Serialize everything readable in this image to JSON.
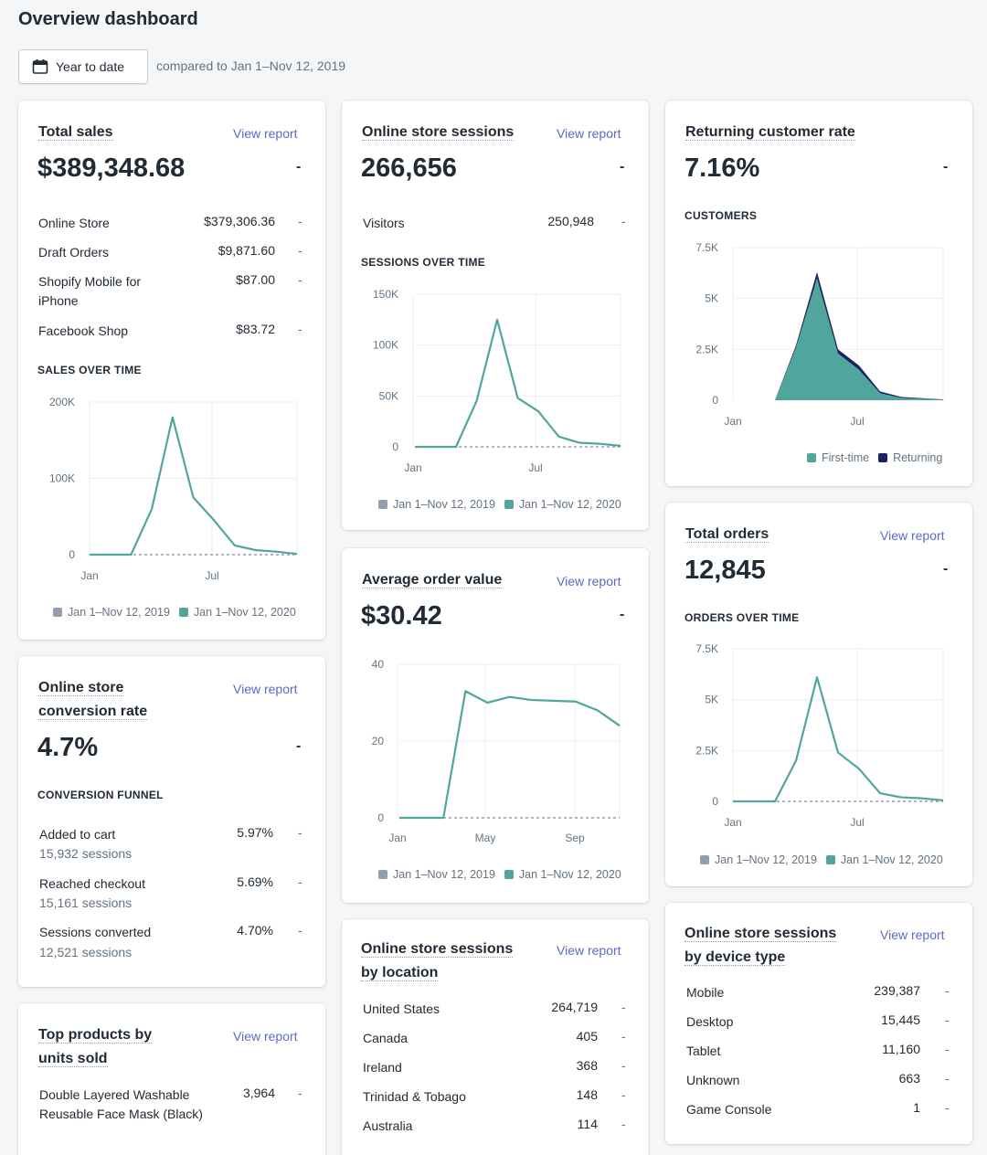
{
  "header": {
    "title": "Overview dashboard",
    "date_button": "Year to date",
    "compare_text": "compared to Jan 1–Nov 12, 2019"
  },
  "colors": {
    "current": "#50a69c",
    "previous": "#919eab",
    "returning": "#1c2260",
    "link": "#5c6ac4"
  },
  "legend": {
    "previous": "Jan 1–Nov 12, 2019",
    "current": "Jan 1–Nov 12, 2020"
  },
  "total_sales": {
    "title": "Total sales",
    "view": "View report",
    "value": "$389,348.68",
    "dash": "-",
    "rows": [
      {
        "label": "Online Store",
        "value": "$379,306.36",
        "dash": "-"
      },
      {
        "label": "Draft Orders",
        "value": "$9,871.60",
        "dash": "-"
      },
      {
        "label": "Shopify Mobile for iPhone",
        "value": "$87.00",
        "dash": "-"
      },
      {
        "label": "Facebook Shop",
        "value": "$83.72",
        "dash": "-"
      }
    ],
    "chart_title": "SALES OVER TIME"
  },
  "sessions": {
    "title": "Online store sessions",
    "view": "View report",
    "value": "266,656",
    "dash": "-",
    "visitors_label": "Visitors",
    "visitors_value": "250,948",
    "visitors_dash": "-",
    "chart_title": "SESSIONS OVER TIME"
  },
  "returning": {
    "title": "Returning customer rate",
    "value": "7.16%",
    "dash": "-",
    "chart_title": "CUSTOMERS",
    "legend_first": "First-time",
    "legend_returning": "Returning"
  },
  "conversion": {
    "title_line1": "Online store",
    "title_line2": "conversion rate",
    "view": "View report",
    "value": "4.7%",
    "dash": "-",
    "funnel_title": "CONVERSION FUNNEL",
    "rows": [
      {
        "label": "Added to cart",
        "sub": "15,932 sessions",
        "value": "5.97%",
        "dash": "-"
      },
      {
        "label": "Reached checkout",
        "sub": "15,161 sessions",
        "value": "5.69%",
        "dash": "-"
      },
      {
        "label": "Sessions converted",
        "sub": "12,521 sessions",
        "value": "4.70%",
        "dash": "-"
      }
    ]
  },
  "aov": {
    "title": "Average order value",
    "view": "View report",
    "value": "$30.42",
    "dash": "-"
  },
  "orders": {
    "title": "Total orders",
    "view": "View report",
    "value": "12,845",
    "dash": "-",
    "chart_title": "ORDERS OVER TIME"
  },
  "location": {
    "title_line1": "Online store sessions",
    "title_line2": "by location",
    "view": "View report",
    "rows": [
      {
        "label": "United States",
        "value": "264,719",
        "dash": "-"
      },
      {
        "label": "Canada",
        "value": "405",
        "dash": "-"
      },
      {
        "label": "Ireland",
        "value": "368",
        "dash": "-"
      },
      {
        "label": "Trinidad & Tobago",
        "value": "148",
        "dash": "-"
      },
      {
        "label": "Australia",
        "value": "114",
        "dash": "-"
      }
    ]
  },
  "device": {
    "title_line1": "Online store sessions",
    "title_line2": "by device type",
    "view": "View report",
    "rows": [
      {
        "label": "Mobile",
        "value": "239,387",
        "dash": "-"
      },
      {
        "label": "Desktop",
        "value": "15,445",
        "dash": "-"
      },
      {
        "label": "Tablet",
        "value": "11,160",
        "dash": "-"
      },
      {
        "label": "Unknown",
        "value": "663",
        "dash": "-"
      },
      {
        "label": "Game Console",
        "value": "1",
        "dash": "-"
      }
    ]
  },
  "top_products": {
    "title_line1": "Top products by",
    "title_line2": "units sold",
    "view": "View report",
    "rows": [
      {
        "label": "Double Layered Washable Reusable Face Mask (Black)",
        "value": "3,964",
        "dash": "-"
      }
    ]
  },
  "chart_data": [
    {
      "id": "sales",
      "type": "line",
      "x_ticks": [
        "Jan",
        "Jul"
      ],
      "y_ticks": [
        "200K",
        "100K",
        "0"
      ],
      "ylim": [
        0,
        200000
      ],
      "series": [
        {
          "name": "Jan 1–Nov 12, 2020",
          "values": [
            0,
            0,
            0,
            60000,
            180000,
            75000,
            45000,
            12000,
            6000,
            4000,
            1000
          ]
        },
        {
          "name": "Jan 1–Nov 12, 2019",
          "values": [
            0,
            0,
            0,
            0,
            0,
            0,
            0,
            0,
            0,
            0,
            0
          ]
        }
      ]
    },
    {
      "id": "sessions",
      "type": "line",
      "x_ticks": [
        "Jan",
        "Jul"
      ],
      "y_ticks": [
        "150K",
        "100K",
        "50K",
        "0"
      ],
      "ylim": [
        0,
        150000
      ],
      "series": [
        {
          "name": "Jan 1–Nov 12, 2020",
          "values": [
            0,
            0,
            0,
            45000,
            125000,
            48000,
            35000,
            10000,
            4000,
            3000,
            1000
          ]
        },
        {
          "name": "Jan 1–Nov 12, 2019",
          "values": [
            0,
            0,
            0,
            0,
            0,
            0,
            0,
            0,
            0,
            0,
            0
          ]
        }
      ]
    },
    {
      "id": "customers",
      "type": "area",
      "x_ticks": [
        "Jan",
        "Jul"
      ],
      "y_ticks": [
        "7.5K",
        "5K",
        "2.5K",
        "0"
      ],
      "ylim": [
        0,
        7500
      ],
      "series": [
        {
          "name": "First-time",
          "values": [
            0,
            0,
            0,
            2600,
            6000,
            2300,
            1500,
            350,
            120,
            80,
            30
          ]
        },
        {
          "name": "Returning",
          "values": [
            0,
            0,
            0,
            100,
            300,
            200,
            200,
            80,
            40,
            20,
            10
          ]
        }
      ]
    },
    {
      "id": "aov",
      "type": "line",
      "x_ticks": [
        "Jan",
        "May",
        "Sep"
      ],
      "y_ticks": [
        "40",
        "20",
        "0"
      ],
      "ylim": [
        0,
        40
      ],
      "series": [
        {
          "name": "Jan 1–Nov 12, 2020",
          "values": [
            0,
            0,
            0,
            33,
            30,
            31.5,
            30.7,
            30.5,
            30.3,
            28,
            24
          ]
        },
        {
          "name": "Jan 1–Nov 12, 2019",
          "values": [
            0,
            0,
            0,
            0,
            0,
            0,
            0,
            0,
            0,
            0,
            0
          ]
        }
      ]
    },
    {
      "id": "orders",
      "type": "line",
      "x_ticks": [
        "Jan",
        "Jul"
      ],
      "y_ticks": [
        "7.5K",
        "5K",
        "2.5K",
        "0"
      ],
      "ylim": [
        0,
        7500
      ],
      "series": [
        {
          "name": "Jan 1–Nov 12, 2020",
          "values": [
            0,
            0,
            0,
            2000,
            6100,
            2400,
            1600,
            400,
            200,
            150,
            50
          ]
        },
        {
          "name": "Jan 1–Nov 12, 2019",
          "values": [
            0,
            0,
            0,
            0,
            0,
            0,
            0,
            0,
            0,
            0,
            0
          ]
        }
      ]
    }
  ]
}
